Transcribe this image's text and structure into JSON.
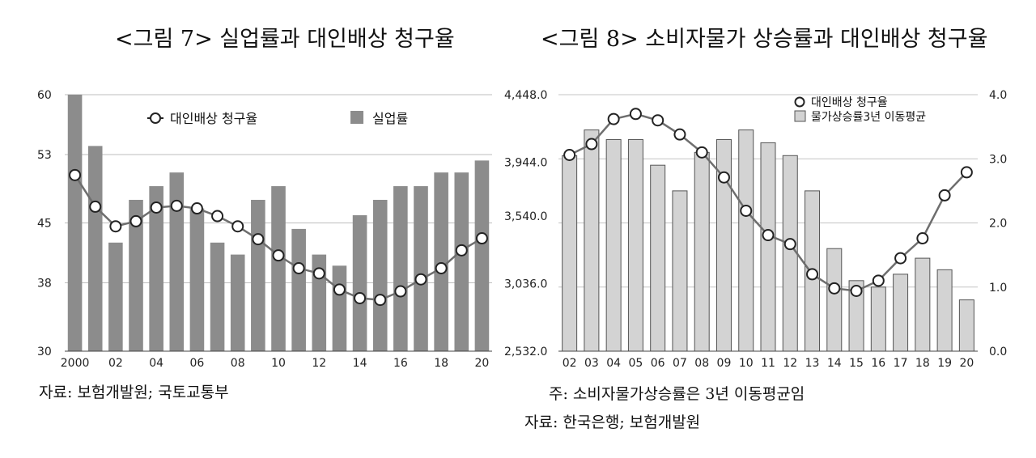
{
  "charts": {
    "fig7_title": "<그림 7> 실업률과 대인배상 청구율",
    "fig8_title": "<그림 8> 소비자물가 상승률과 대인배상 청구율",
    "fig7_source": "자료: 보험개발원; 국토교통부",
    "fig8_note": "주: 소비자물가상승률은 3년 이동평균임",
    "fig8_source": "자료: 한국은행; 보험개발원"
  },
  "chart_data": [
    {
      "type": "bar",
      "title": "<그림 7> 실업률과 대인배상 청구율",
      "x": [
        "2000",
        "01",
        "02",
        "03",
        "04",
        "05",
        "06",
        "07",
        "08",
        "09",
        "10",
        "11",
        "12",
        "13",
        "14",
        "15",
        "16",
        "17",
        "18",
        "19",
        "20"
      ],
      "x_tick_labels": [
        "2000",
        "02",
        "04",
        "06",
        "08",
        "10",
        "12",
        "14",
        "16",
        "18",
        "20"
      ],
      "y_ticks": [
        "60",
        "53",
        "45",
        "38",
        "30"
      ],
      "ylim": [
        30,
        60
      ],
      "grid": "horizontal",
      "legend_position": "top",
      "series": [
        {
          "name": "실업률",
          "type": "bar",
          "color": "#8c8c8c",
          "values": [
            60,
            54,
            42.7,
            47.7,
            49.3,
            50.9,
            46.7,
            42.7,
            41.3,
            47.7,
            49.3,
            44.3,
            41.3,
            40,
            45.9,
            47.7,
            49.3,
            49.3,
            50.9,
            50.9,
            52.3
          ]
        },
        {
          "name": "대인배상 청구율",
          "type": "line",
          "color": "#6e6e6e",
          "values": [
            50.6,
            46.9,
            44.6,
            45.2,
            46.8,
            47.0,
            46.7,
            45.8,
            44.6,
            43.1,
            41.2,
            39.7,
            39.1,
            37.2,
            36.2,
            36.0,
            37.0,
            38.4,
            39.7,
            41.8,
            43.2
          ]
        }
      ]
    },
    {
      "type": "bar",
      "title": "<그림 8> 소비자물가 상승률과 대인배상 청구율",
      "x": [
        "02",
        "03",
        "04",
        "05",
        "06",
        "07",
        "08",
        "09",
        "10",
        "11",
        "12",
        "13",
        "14",
        "15",
        "16",
        "17",
        "18",
        "19",
        "20"
      ],
      "y_left_ticks": [
        "4,448.0",
        "3,944.0",
        "3,540.0",
        "3,036.0",
        "2,532.0"
      ],
      "ylim_left": [
        2532,
        4448
      ],
      "y_right_ticks": [
        "4.0",
        "3.0",
        "2.0",
        "1.0",
        "0.0"
      ],
      "ylim_right": [
        0,
        4
      ],
      "grid": "horizontal",
      "legend_position": "top-right",
      "series": [
        {
          "name": "물가상승률3년 이동평균",
          "type": "bar",
          "axis": "right",
          "color": "#d3d3d3",
          "values": [
            3.05,
            3.45,
            3.3,
            3.3,
            2.9,
            2.5,
            3.1,
            3.3,
            3.45,
            3.25,
            3.05,
            2.5,
            1.6,
            1.1,
            1.0,
            1.2,
            1.45,
            1.27,
            0.8
          ]
        },
        {
          "name": "대인배상 청구율",
          "type": "line",
          "axis": "right",
          "color": "#6e6e6e",
          "values": [
            3.06,
            3.23,
            3.62,
            3.7,
            3.6,
            3.38,
            3.1,
            2.71,
            2.19,
            1.81,
            1.67,
            1.2,
            0.98,
            0.94,
            1.1,
            1.45,
            1.76,
            2.43,
            2.79
          ]
        }
      ]
    }
  ]
}
